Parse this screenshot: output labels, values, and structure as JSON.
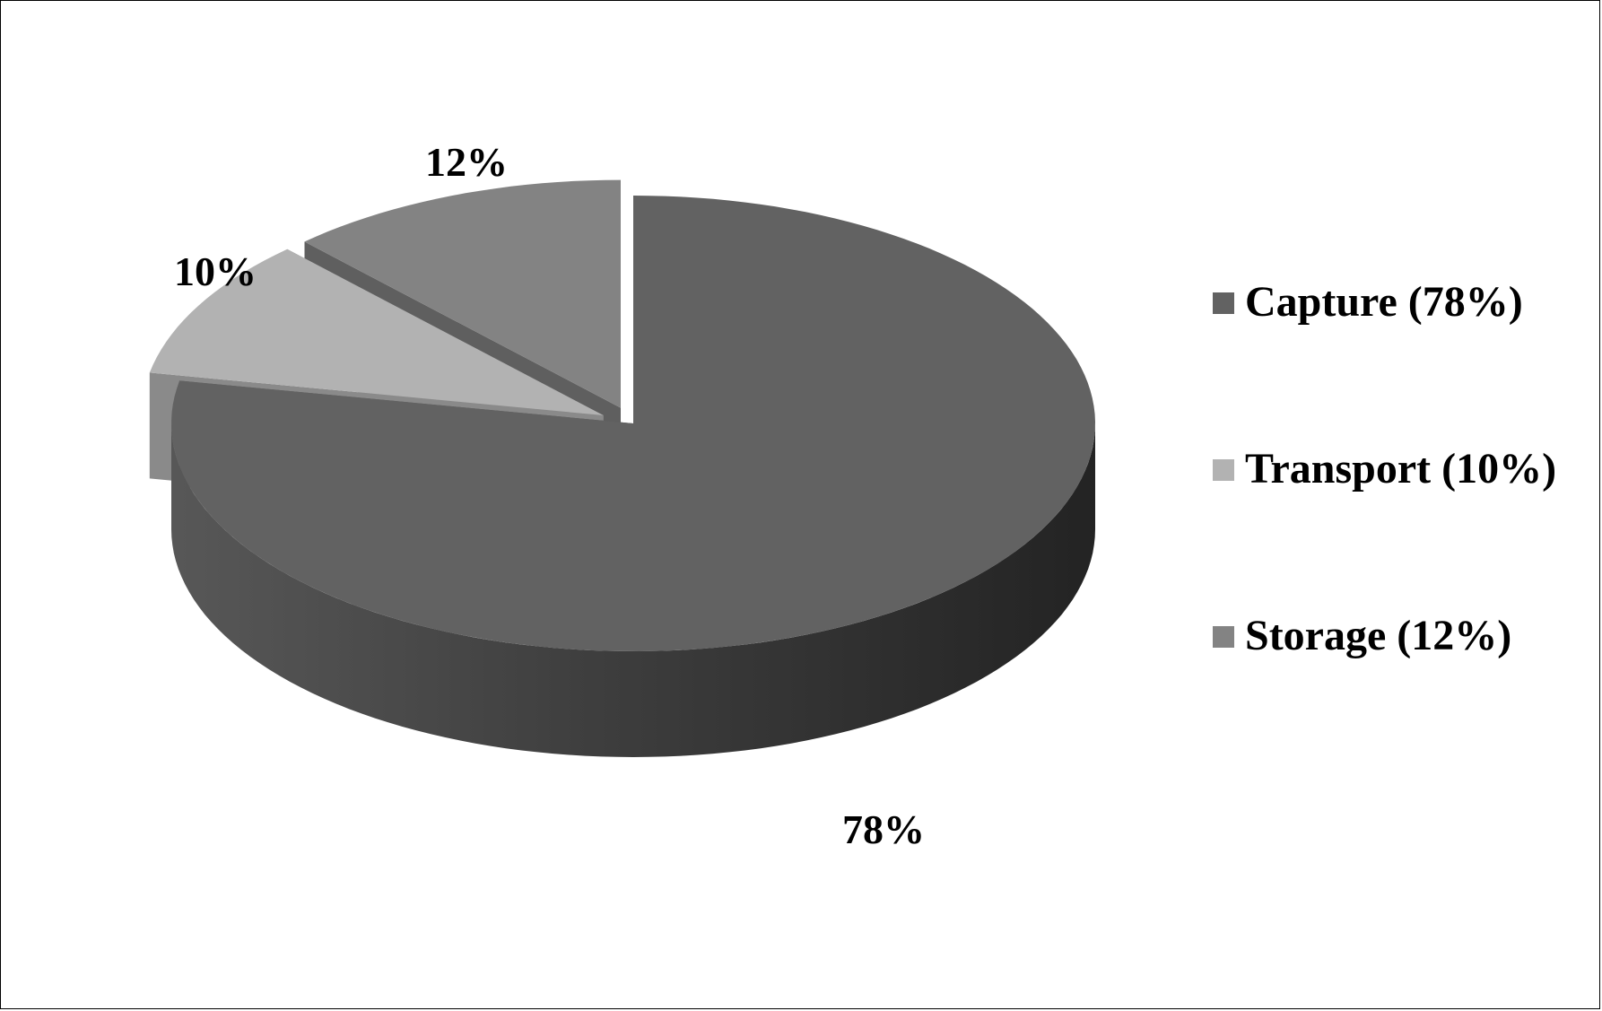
{
  "chart_data": {
    "type": "pie",
    "title": "",
    "style": "3d-exploded",
    "legend_position": "right",
    "slices": [
      {
        "name": "Capture",
        "value": 78,
        "data_label": "78%",
        "legend_label": "Capture (78%)",
        "color": "#626262",
        "side_light": "#575757",
        "side_dark": "#232323"
      },
      {
        "name": "Transport",
        "value": 10,
        "data_label": "10%",
        "legend_label": "Transport (10%)",
        "color": "#b2b2b2",
        "side_light": "#8a8a8a",
        "side_dark": "#5a5a5a"
      },
      {
        "name": "Storage",
        "value": 12,
        "data_label": "12%",
        "legend_label": "Storage (12%)",
        "color": "#838383",
        "side_light": "#5f5f5f",
        "side_dark": "#3c3c3c"
      }
    ]
  }
}
